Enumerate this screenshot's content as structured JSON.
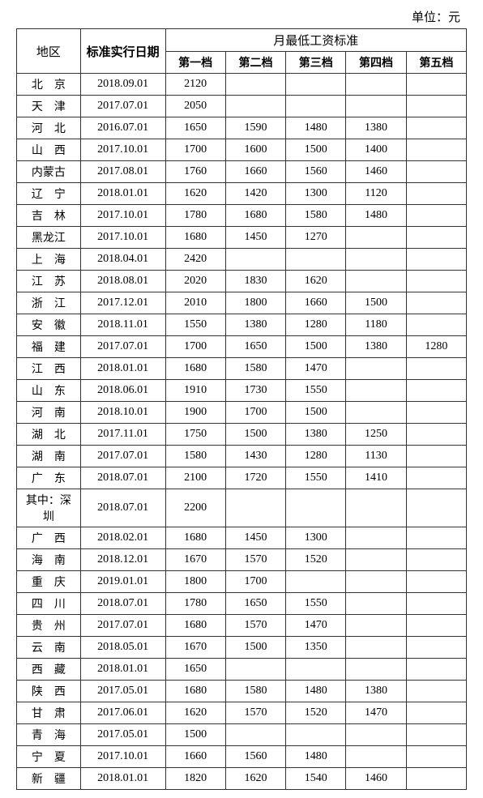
{
  "unit_label": "单位：元",
  "headers": {
    "region": "地区",
    "date": "标准实行日期",
    "group": "月最低工资标准",
    "tier1": "第一档",
    "tier2": "第二档",
    "tier3": "第三档",
    "tier4": "第四档",
    "tier5": "第五档"
  },
  "rows": [
    {
      "region": "北　京",
      "date": "2018.09.01",
      "t1": "2120",
      "t2": "",
      "t3": "",
      "t4": "",
      "t5": ""
    },
    {
      "region": "天　津",
      "date": "2017.07.01",
      "t1": "2050",
      "t2": "",
      "t3": "",
      "t4": "",
      "t5": ""
    },
    {
      "region": "河　北",
      "date": "2016.07.01",
      "t1": "1650",
      "t2": "1590",
      "t3": "1480",
      "t4": "1380",
      "t5": ""
    },
    {
      "region": "山　西",
      "date": "2017.10.01",
      "t1": "1700",
      "t2": "1600",
      "t3": "1500",
      "t4": "1400",
      "t5": ""
    },
    {
      "region": "内蒙古",
      "date": "2017.08.01",
      "t1": "1760",
      "t2": "1660",
      "t3": "1560",
      "t4": "1460",
      "t5": ""
    },
    {
      "region": "辽　宁",
      "date": "2018.01.01",
      "t1": "1620",
      "t2": "1420",
      "t3": "1300",
      "t4": "1120",
      "t5": ""
    },
    {
      "region": "吉　林",
      "date": "2017.10.01",
      "t1": "1780",
      "t2": "1680",
      "t3": "1580",
      "t4": "1480",
      "t5": ""
    },
    {
      "region": "黑龙江",
      "date": "2017.10.01",
      "t1": "1680",
      "t2": "1450",
      "t3": "1270",
      "t4": "",
      "t5": ""
    },
    {
      "region": "上　海",
      "date": "2018.04.01",
      "t1": "2420",
      "t2": "",
      "t3": "",
      "t4": "",
      "t5": ""
    },
    {
      "region": "江　苏",
      "date": "2018.08.01",
      "t1": "2020",
      "t2": "1830",
      "t3": "1620",
      "t4": "",
      "t5": ""
    },
    {
      "region": "浙　江",
      "date": "2017.12.01",
      "t1": "2010",
      "t2": "1800",
      "t3": "1660",
      "t4": "1500",
      "t5": ""
    },
    {
      "region": "安　徽",
      "date": "2018.11.01",
      "t1": "1550",
      "t2": "1380",
      "t3": "1280",
      "t4": "1180",
      "t5": ""
    },
    {
      "region": "福　建",
      "date": "2017.07.01",
      "t1": "1700",
      "t2": "1650",
      "t3": "1500",
      "t4": "1380",
      "t5": "1280"
    },
    {
      "region": "江　西",
      "date": "2018.01.01",
      "t1": "1680",
      "t2": "1580",
      "t3": "1470",
      "t4": "",
      "t5": ""
    },
    {
      "region": "山　东",
      "date": "2018.06.01",
      "t1": "1910",
      "t2": "1730",
      "t3": "1550",
      "t4": "",
      "t5": ""
    },
    {
      "region": "河　南",
      "date": "2018.10.01",
      "t1": "1900",
      "t2": "1700",
      "t3": "1500",
      "t4": "",
      "t5": ""
    },
    {
      "region": "湖　北",
      "date": "2017.11.01",
      "t1": "1750",
      "t2": "1500",
      "t3": "1380",
      "t4": "1250",
      "t5": ""
    },
    {
      "region": "湖　南",
      "date": "2017.07.01",
      "t1": "1580",
      "t2": "1430",
      "t3": "1280",
      "t4": "1130",
      "t5": ""
    },
    {
      "region": "广　东",
      "date": "2018.07.01",
      "t1": "2100",
      "t2": "1720",
      "t3": "1550",
      "t4": "1410",
      "t5": ""
    },
    {
      "region": "其中：深圳",
      "date": "2018.07.01",
      "t1": "2200",
      "t2": "",
      "t3": "",
      "t4": "",
      "t5": ""
    },
    {
      "region": "广　西",
      "date": "2018.02.01",
      "t1": "1680",
      "t2": "1450",
      "t3": "1300",
      "t4": "",
      "t5": ""
    },
    {
      "region": "海　南",
      "date": "2018.12.01",
      "t1": "1670",
      "t2": "1570",
      "t3": "1520",
      "t4": "",
      "t5": ""
    },
    {
      "region": "重　庆",
      "date": "2019.01.01",
      "t1": "1800",
      "t2": "1700",
      "t3": "",
      "t4": "",
      "t5": ""
    },
    {
      "region": "四　川",
      "date": "2018.07.01",
      "t1": "1780",
      "t2": "1650",
      "t3": "1550",
      "t4": "",
      "t5": ""
    },
    {
      "region": "贵　州",
      "date": "2017.07.01",
      "t1": "1680",
      "t2": "1570",
      "t3": "1470",
      "t4": "",
      "t5": ""
    },
    {
      "region": "云　南",
      "date": "2018.05.01",
      "t1": "1670",
      "t2": "1500",
      "t3": "1350",
      "t4": "",
      "t5": ""
    },
    {
      "region": "西　藏",
      "date": "2018.01.01",
      "t1": "1650",
      "t2": "",
      "t3": "",
      "t4": "",
      "t5": ""
    },
    {
      "region": "陕　西",
      "date": "2017.05.01",
      "t1": "1680",
      "t2": "1580",
      "t3": "1480",
      "t4": "1380",
      "t5": ""
    },
    {
      "region": "甘　肃",
      "date": "2017.06.01",
      "t1": "1620",
      "t2": "1570",
      "t3": "1520",
      "t4": "1470",
      "t5": ""
    },
    {
      "region": "青　海",
      "date": "2017.05.01",
      "t1": "1500",
      "t2": "",
      "t3": "",
      "t4": "",
      "t5": ""
    },
    {
      "region": "宁　夏",
      "date": "2017.10.01",
      "t1": "1660",
      "t2": "1560",
      "t3": "1480",
      "t4": "",
      "t5": ""
    },
    {
      "region": "新　疆",
      "date": "2018.01.01",
      "t1": "1820",
      "t2": "1620",
      "t3": "1540",
      "t4": "1460",
      "t5": ""
    }
  ],
  "styles": {
    "border_color": "#333333",
    "background_color": "#ffffff",
    "font_family": "SimSun",
    "body_fontsize": 14,
    "header_fontsize": 15
  }
}
